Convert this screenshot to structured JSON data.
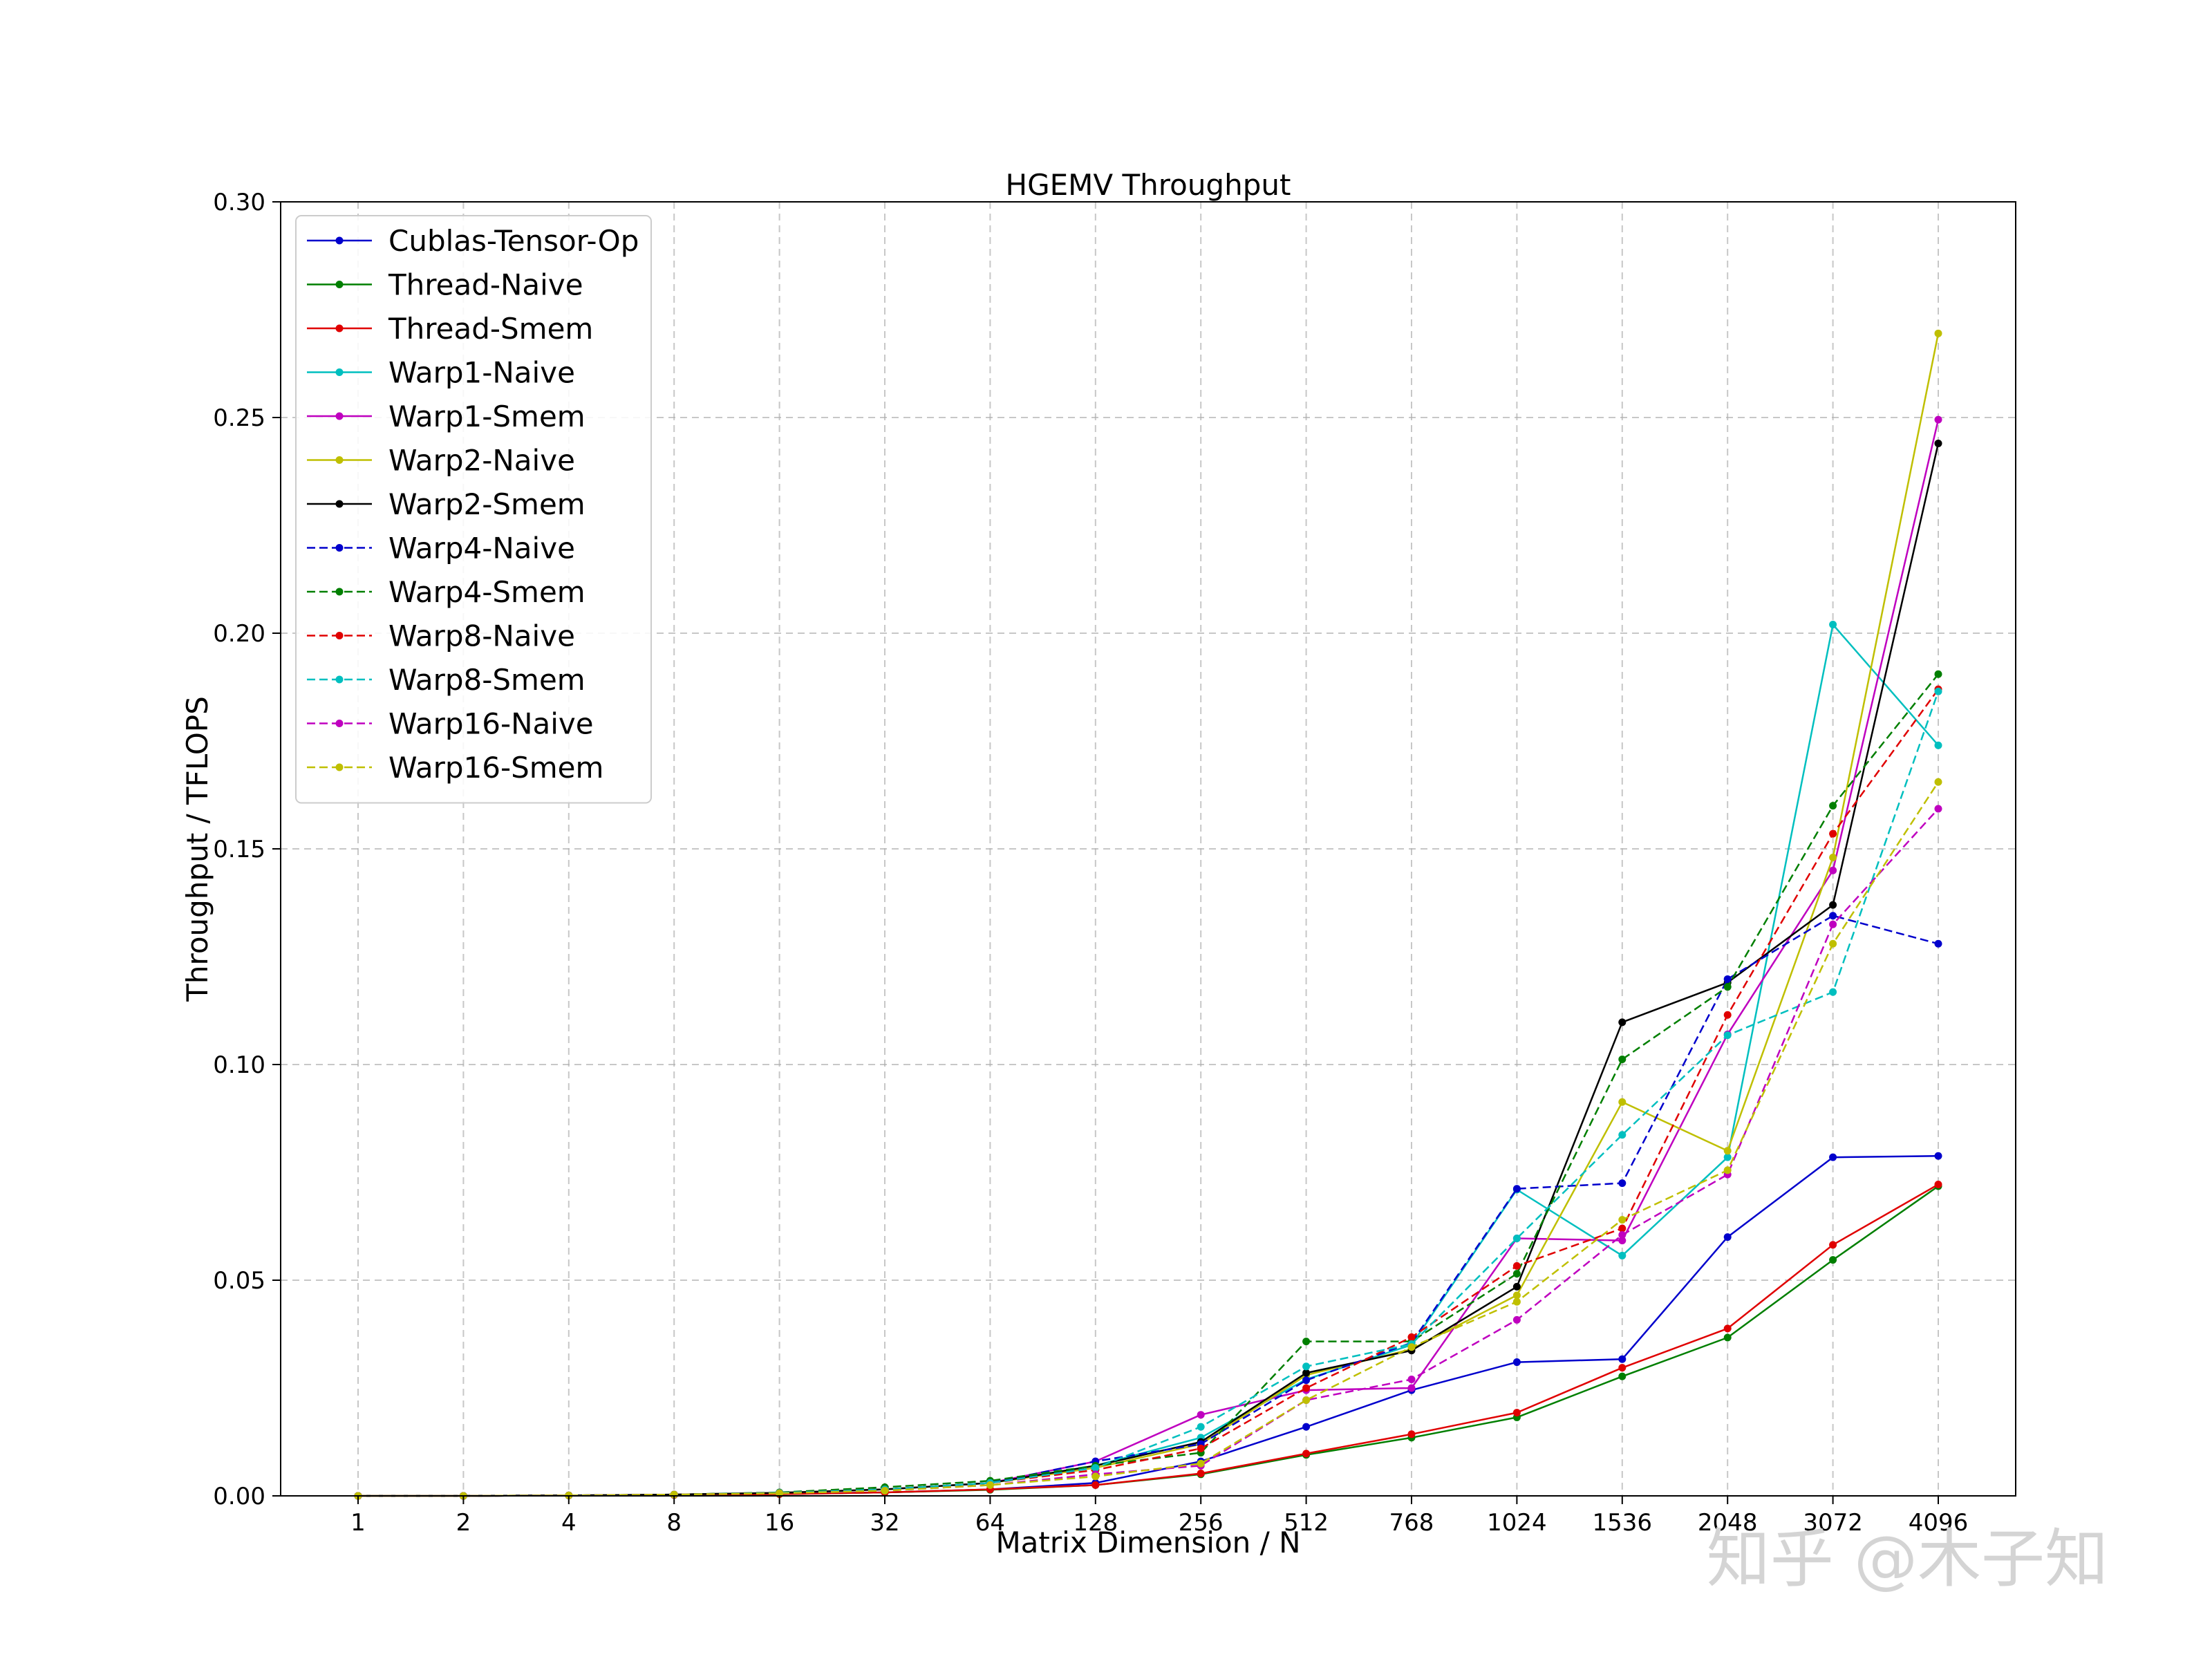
{
  "watermark": "知乎 @木子知",
  "chart_data": {
    "type": "line",
    "title": "HGEMV Throughput",
    "xlabel": "Matrix Dimension / N",
    "ylabel": "Throughput / TFLOPS",
    "categories": [
      "1",
      "2",
      "4",
      "8",
      "16",
      "32",
      "64",
      "128",
      "256",
      "512",
      "768",
      "1024",
      "1536",
      "2048",
      "3072",
      "4096"
    ],
    "ylim": [
      0,
      0.3
    ],
    "yticks": [
      "0.00",
      "0.05",
      "0.10",
      "0.15",
      "0.20",
      "0.25",
      "0.30"
    ],
    "grid": true,
    "legend_position": "top-left",
    "series": [
      {
        "name": "Cublas-Tensor-Op",
        "color": "#0000cc",
        "dash": "solid",
        "values": [
          0.0,
          0.0,
          0.0001,
          0.0002,
          0.0005,
          0.0008,
          0.0015,
          0.003,
          0.008,
          0.016,
          0.0245,
          0.031,
          0.0317,
          0.06,
          0.0785,
          0.0788
        ]
      },
      {
        "name": "Thread-Naive",
        "color": "#007f00",
        "dash": "solid",
        "values": [
          0.0,
          0.0,
          0.0001,
          0.0002,
          0.0004,
          0.0008,
          0.0014,
          0.0025,
          0.005,
          0.0095,
          0.0135,
          0.0182,
          0.0277,
          0.0367,
          0.0547,
          0.0718
        ]
      },
      {
        "name": "Thread-Smem",
        "color": "#e00000",
        "dash": "solid",
        "values": [
          0.0,
          0.0,
          0.0001,
          0.0002,
          0.0004,
          0.0008,
          0.0015,
          0.0025,
          0.0052,
          0.0098,
          0.0143,
          0.0193,
          0.0297,
          0.0388,
          0.0582,
          0.0722
        ]
      },
      {
        "name": "Warp1-Naive",
        "color": "#00bfbf",
        "dash": "solid",
        "values": [
          0.0,
          0.0,
          0.0001,
          0.0003,
          0.0007,
          0.0015,
          0.003,
          0.007,
          0.0135,
          0.027,
          0.035,
          0.071,
          0.0557,
          0.0785,
          0.202,
          0.174
        ]
      },
      {
        "name": "Warp1-Smem",
        "color": "#bf00bf",
        "dash": "solid",
        "values": [
          0.0,
          0.0,
          0.0001,
          0.0003,
          0.0007,
          0.0015,
          0.003,
          0.008,
          0.0188,
          0.0245,
          0.025,
          0.0597,
          0.0592,
          0.107,
          0.145,
          0.2495
        ]
      },
      {
        "name": "Warp2-Naive",
        "color": "#bfbf00",
        "dash": "solid",
        "values": [
          0.0,
          0.0,
          0.0001,
          0.0003,
          0.0007,
          0.0015,
          0.003,
          0.0065,
          0.012,
          0.028,
          0.034,
          0.0465,
          0.0913,
          0.08,
          0.148,
          0.2695
        ]
      },
      {
        "name": "Warp2-Smem",
        "color": "#000000",
        "dash": "solid",
        "values": [
          0.0,
          0.0,
          0.0001,
          0.0003,
          0.0007,
          0.0015,
          0.003,
          0.007,
          0.0125,
          0.0285,
          0.0337,
          0.0485,
          0.1098,
          0.119,
          0.137,
          0.244
        ]
      },
      {
        "name": "Warp4-Naive",
        "color": "#0000cc",
        "dash": "dashed",
        "values": [
          0.0,
          0.0,
          0.0001,
          0.0003,
          0.0007,
          0.0015,
          0.003,
          0.008,
          0.012,
          0.0268,
          0.0355,
          0.0712,
          0.0725,
          0.1198,
          0.1345,
          0.128
        ]
      },
      {
        "name": "Warp4-Smem",
        "color": "#007f00",
        "dash": "dashed",
        "values": [
          0.0,
          0.0,
          0.0001,
          0.0003,
          0.0008,
          0.002,
          0.0035,
          0.007,
          0.01,
          0.0358,
          0.0358,
          0.0515,
          0.1012,
          0.118,
          0.16,
          0.1905
        ]
      },
      {
        "name": "Warp8-Naive",
        "color": "#e00000",
        "dash": "dashed",
        "values": [
          0.0,
          0.0,
          0.0001,
          0.0003,
          0.0007,
          0.0015,
          0.003,
          0.006,
          0.011,
          0.025,
          0.0368,
          0.0533,
          0.062,
          0.1115,
          0.1535,
          0.187
        ]
      },
      {
        "name": "Warp8-Smem",
        "color": "#00bfbf",
        "dash": "dashed",
        "values": [
          0.0,
          0.0,
          0.0001,
          0.0003,
          0.0007,
          0.0015,
          0.003,
          0.0065,
          0.016,
          0.03,
          0.0352,
          0.0597,
          0.0837,
          0.1068,
          0.1168,
          0.1865
        ]
      },
      {
        "name": "Warp16-Naive",
        "color": "#bf00bf",
        "dash": "dashed",
        "values": [
          0.0,
          0.0,
          0.0001,
          0.0003,
          0.0006,
          0.0012,
          0.0025,
          0.005,
          0.007,
          0.0222,
          0.027,
          0.0408,
          0.0605,
          0.0745,
          0.1325,
          0.1593
        ]
      },
      {
        "name": "Warp16-Smem",
        "color": "#bfbf00",
        "dash": "dashed",
        "values": [
          0.0,
          0.0,
          0.0001,
          0.0003,
          0.0006,
          0.0012,
          0.0025,
          0.0045,
          0.0075,
          0.0222,
          0.0345,
          0.045,
          0.064,
          0.0755,
          0.128,
          0.1655
        ]
      }
    ]
  }
}
